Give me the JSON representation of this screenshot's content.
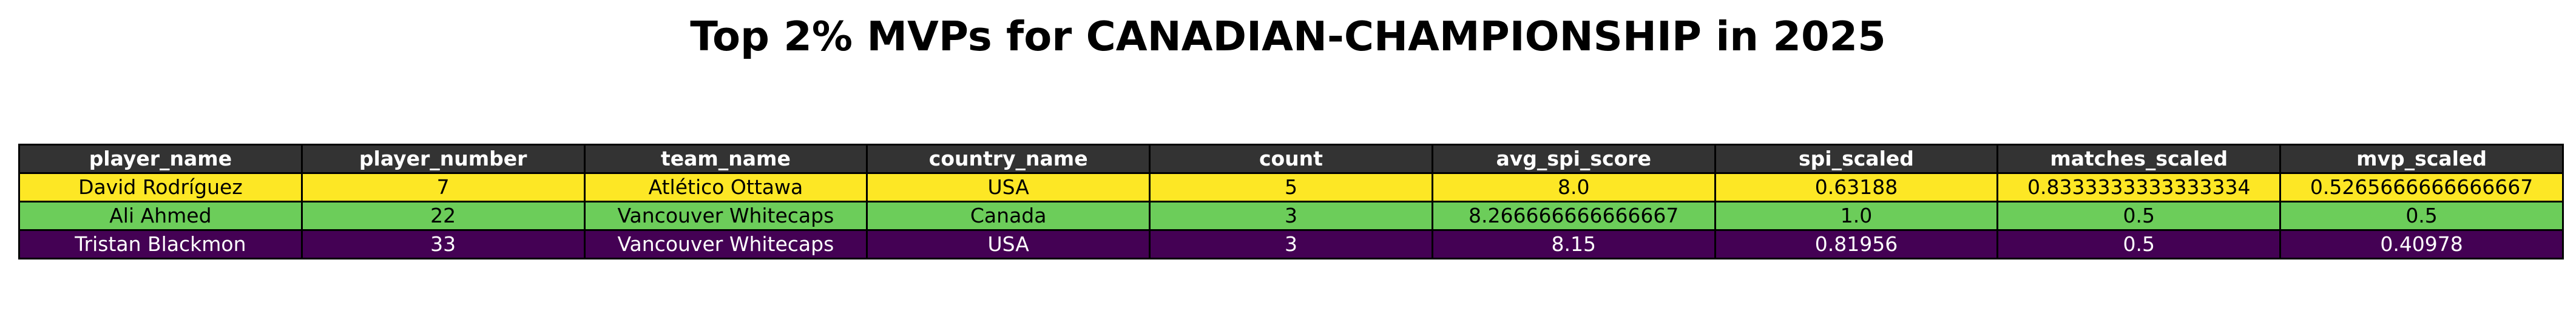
{
  "chart_data": {
    "type": "table",
    "title": "Top 2% MVPs for CANADIAN-CHAMPIONSHIP in 2025",
    "header_color": "#333333",
    "header_text_color": "#ffffff",
    "columns": [
      "player_name",
      "player_number",
      "team_name",
      "country_name",
      "count",
      "avg_spi_score",
      "spi_scaled",
      "matches_scaled",
      "mvp_scaled"
    ],
    "rows": [
      {
        "cells": [
          "David Rodríguez",
          "7",
          "Atlético Ottawa",
          "USA",
          "5",
          "8.0",
          "0.63188",
          "0.8333333333333334",
          "0.5265666666666667"
        ],
        "bg_color": "#fde725",
        "text_color": "#000000"
      },
      {
        "cells": [
          "Ali Ahmed",
          "22",
          "Vancouver Whitecaps",
          "Canada",
          "3",
          "8.266666666666667",
          "1.0",
          "0.5",
          "0.5"
        ],
        "bg_color": "#6ccd5a",
        "text_color": "#000000"
      },
      {
        "cells": [
          "Tristan Blackmon",
          "33",
          "Vancouver Whitecaps",
          "USA",
          "3",
          "8.15",
          "0.81956",
          "0.5",
          "0.40978"
        ],
        "bg_color": "#440154",
        "text_color": "#ffffff"
      }
    ]
  }
}
